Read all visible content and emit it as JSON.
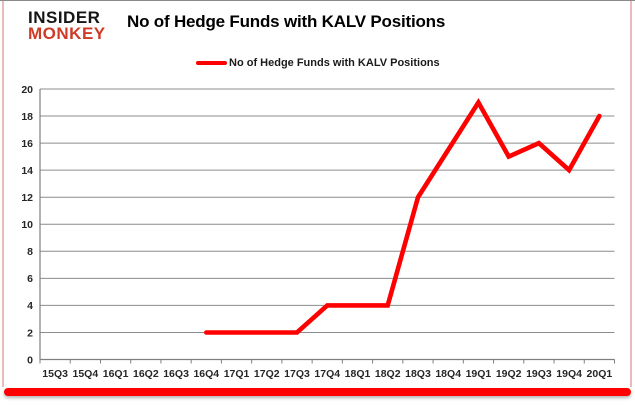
{
  "header": {
    "logo_line1": "INSIDER",
    "logo_line2": "MONKEY",
    "title": "No of Hedge Funds with KALV Positions"
  },
  "legend": {
    "label": "No of Hedge Funds with KALV Positions",
    "position": "top"
  },
  "colors": {
    "series_line": "#fe0000",
    "logo_black": "#151515",
    "logo_red": "#ce3b26",
    "gridline": "#8c8c8c",
    "axis_line": "#7f7f7f",
    "tick_label": "#262626",
    "frame_side_pink": "#e7bcba",
    "frame_top_gray": "#8a8a8a",
    "bottom_bar": "#fe0000",
    "background": "#ffffff"
  },
  "chart_data": {
    "type": "line",
    "title": "No of Hedge Funds with KALV Positions",
    "categories": [
      "15Q3",
      "15Q4",
      "16Q1",
      "16Q2",
      "16Q3",
      "16Q4",
      "17Q1",
      "17Q2",
      "17Q3",
      "17Q4",
      "18Q1",
      "18Q2",
      "18Q3",
      "18Q4",
      "19Q1",
      "19Q2",
      "19Q3",
      "19Q4",
      "20Q1"
    ],
    "series": [
      {
        "name": "No of Hedge Funds with KALV Positions",
        "color": "#fe0000",
        "values": [
          null,
          null,
          null,
          null,
          null,
          2,
          2,
          2,
          2,
          4,
          4,
          4,
          12,
          15.5,
          19,
          15,
          16,
          14,
          18
        ]
      }
    ],
    "xlabel": "",
    "ylabel": "",
    "ylim": [
      0,
      20
    ],
    "ytick_step": 2,
    "grid": true,
    "legend_position": "top-center"
  }
}
